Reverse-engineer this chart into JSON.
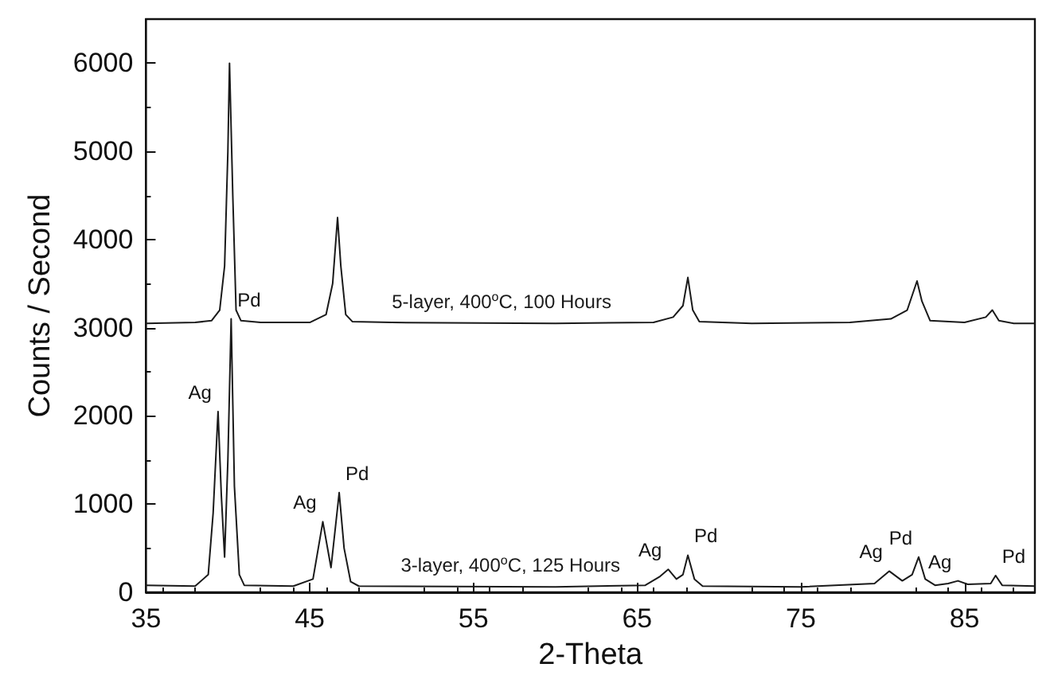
{
  "chart_data": {
    "type": "line",
    "xlabel": "2-Theta",
    "ylabel": "Counts / Second",
    "xlim": [
      35,
      89.3
    ],
    "xticks": [
      35,
      45,
      55,
      65,
      75,
      85
    ],
    "ylim": [
      0,
      6500
    ],
    "yticks": [
      0,
      1000,
      2000,
      3000,
      4000,
      5000,
      6000
    ],
    "grid": false,
    "marker": "none",
    "line_style": "solid",
    "series": [
      {
        "name": "5-layer, 400$^{o}$C, 100 Hours",
        "color": "#1a1a1a",
        "x": [
          35,
          38,
          39,
          39.5,
          39.8,
          40.0,
          40.1,
          40.3,
          40.5,
          40.8,
          42,
          45,
          46,
          46.4,
          46.7,
          46.9,
          47.2,
          47.6,
          50,
          60,
          66,
          67.2,
          67.8,
          68.1,
          68.4,
          68.8,
          72,
          78,
          80.5,
          81.5,
          82.1,
          82.4,
          82.9,
          85,
          86.3,
          86.7,
          87.1,
          88,
          89.3
        ],
        "values": [
          3050,
          3060,
          3080,
          3200,
          3700,
          5000,
          6000,
          4500,
          3200,
          3080,
          3060,
          3060,
          3150,
          3500,
          4250,
          3700,
          3150,
          3070,
          3060,
          3050,
          3060,
          3120,
          3250,
          3570,
          3200,
          3070,
          3050,
          3060,
          3100,
          3200,
          3530,
          3300,
          3080,
          3060,
          3120,
          3200,
          3080,
          3050,
          3050
        ]
      },
      {
        "name": "3-layer, 400$^{o}$C, 125 Hours",
        "color": "#1a1a1a",
        "x": [
          35,
          38,
          38.8,
          39.1,
          39.4,
          39.6,
          39.8,
          40.0,
          40.2,
          40.4,
          40.7,
          41,
          44,
          45.2,
          45.8,
          46.3,
          46.8,
          47.1,
          47.5,
          48,
          60,
          65.5,
          66.4,
          66.9,
          67.4,
          67.8,
          68.1,
          68.5,
          69,
          75,
          79.5,
          80.4,
          81.2,
          81.8,
          82.2,
          82.6,
          83.2,
          84,
          84.6,
          85.2,
          86.6,
          86.9,
          87.3,
          89.3
        ],
        "values": [
          80,
          70,
          200,
          900,
          2050,
          1100,
          400,
          1500,
          3100,
          1200,
          200,
          80,
          70,
          150,
          800,
          280,
          1130,
          500,
          120,
          70,
          60,
          80,
          180,
          260,
          150,
          200,
          420,
          150,
          70,
          60,
          100,
          240,
          130,
          200,
          400,
          150,
          80,
          100,
          130,
          90,
          100,
          190,
          80,
          70
        ]
      }
    ],
    "annotations": [
      {
        "text": "Ag",
        "x": 39.4,
        "y": 2050
      },
      {
        "text": "Pd",
        "x": 40.2,
        "y": 3100
      },
      {
        "text": "Ag",
        "x": 45.8,
        "y": 800
      },
      {
        "text": "Pd",
        "x": 46.8,
        "y": 1130
      },
      {
        "text": "Ag",
        "x": 66.9,
        "y": 260
      },
      {
        "text": "Pd",
        "x": 68.1,
        "y": 420
      },
      {
        "text": "Ag",
        "x": 80.4,
        "y": 240
      },
      {
        "text": "Pd",
        "x": 82.2,
        "y": 400
      },
      {
        "text": "Ag",
        "x": 84.6,
        "y": 130
      },
      {
        "text": "Pd",
        "x": 86.9,
        "y": 190
      }
    ]
  }
}
